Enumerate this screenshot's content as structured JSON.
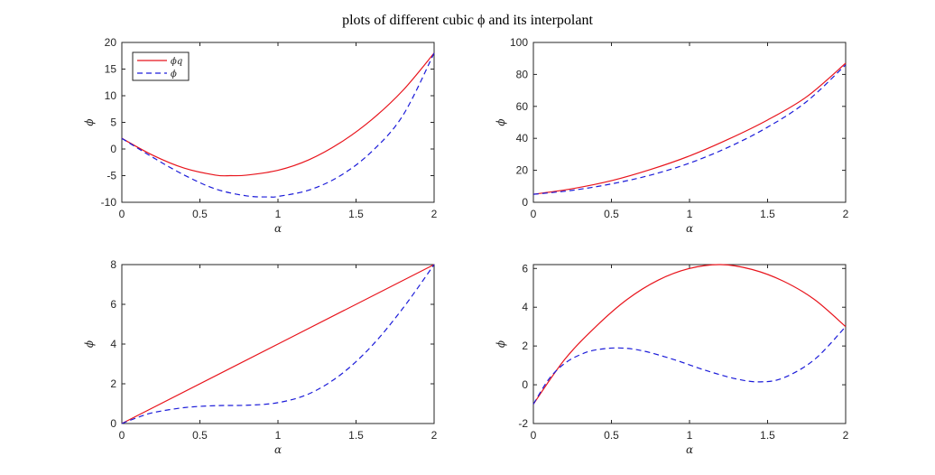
{
  "figure_title": "plots of different cubic ϕ and its interpolant",
  "colors": {
    "interpolant": "#e8141c",
    "phi": "#1c1cd9",
    "axes": "#262626"
  },
  "chart_data": [
    {
      "type": "line",
      "xlabel": "α",
      "ylabel": "ϕ",
      "xlim": [
        0,
        2
      ],
      "ylim": [
        -10,
        20
      ],
      "xticks": [
        0,
        0.5,
        1,
        1.5,
        2
      ],
      "xtick_labels": [
        "0",
        "0.5",
        "1",
        "1.5",
        "2"
      ],
      "yticks": [
        -10,
        -5,
        0,
        5,
        10,
        15,
        20
      ],
      "ytick_labels": [
        "-10",
        "-5",
        "0",
        "5",
        "10",
        "15",
        "20"
      ],
      "legend": {
        "placement": "top-left",
        "entries": [
          "ϕq",
          "ϕ"
        ]
      },
      "series": [
        {
          "name": "ϕq",
          "style": "solid",
          "color": "#e8141c",
          "x": [
            0,
            0.2,
            0.4,
            0.6,
            0.7,
            0.8,
            1.0,
            1.2,
            1.4,
            1.6,
            1.8,
            2.0
          ],
          "y": [
            2,
            -1.2,
            -3.6,
            -4.9,
            -5.0,
            -4.9,
            -4.0,
            -2.0,
            1.2,
            5.5,
            11.0,
            18.0
          ]
        },
        {
          "name": "ϕ",
          "style": "dashed",
          "color": "#1c1cd9",
          "x": [
            0,
            0.2,
            0.4,
            0.6,
            0.8,
            0.95,
            1.0,
            1.2,
            1.4,
            1.6,
            1.8,
            2.0
          ],
          "y": [
            2,
            -1.6,
            -4.9,
            -7.5,
            -8.8,
            -9.0,
            -8.9,
            -7.7,
            -5.0,
            -0.5,
            6.3,
            18.0
          ]
        }
      ]
    },
    {
      "type": "line",
      "xlabel": "α",
      "ylabel": "ϕ",
      "xlim": [
        0,
        2
      ],
      "ylim": [
        0,
        100
      ],
      "xticks": [
        0,
        0.5,
        1,
        1.5,
        2
      ],
      "xtick_labels": [
        "0",
        "0.5",
        "1",
        "1.5",
        "2"
      ],
      "yticks": [
        0,
        20,
        40,
        60,
        80,
        100
      ],
      "ytick_labels": [
        "0",
        "20",
        "40",
        "60",
        "80",
        "100"
      ],
      "series": [
        {
          "name": "ϕq",
          "style": "solid",
          "color": "#e8141c",
          "x": [
            0,
            0.25,
            0.5,
            0.75,
            1.0,
            1.25,
            1.5,
            1.75,
            2.0
          ],
          "y": [
            5,
            8.5,
            13.5,
            20.5,
            29,
            39.5,
            51.5,
            66,
            87
          ]
        },
        {
          "name": "ϕ",
          "style": "dashed",
          "color": "#1c1cd9",
          "x": [
            0,
            0.25,
            0.5,
            0.75,
            1.0,
            1.25,
            1.5,
            1.75,
            2.0
          ],
          "y": [
            5,
            7.5,
            11.5,
            17,
            24.5,
            34.5,
            47,
            63,
            86
          ]
        }
      ]
    },
    {
      "type": "line",
      "xlabel": "α",
      "ylabel": "ϕ",
      "xlim": [
        0,
        2
      ],
      "ylim": [
        0,
        8
      ],
      "xticks": [
        0,
        0.5,
        1,
        1.5,
        2
      ],
      "xtick_labels": [
        "0",
        "0.5",
        "1",
        "1.5",
        "2"
      ],
      "yticks": [
        0,
        2,
        4,
        6,
        8
      ],
      "ytick_labels": [
        "0",
        "2",
        "4",
        "6",
        "8"
      ],
      "series": [
        {
          "name": "ϕq",
          "style": "solid",
          "color": "#e8141c",
          "x": [
            0,
            2
          ],
          "y": [
            0,
            8
          ]
        },
        {
          "name": "ϕ",
          "style": "dashed",
          "color": "#1c1cd9",
          "x": [
            0,
            0.1,
            0.2,
            0.4,
            0.6,
            0.8,
            1.0,
            1.2,
            1.4,
            1.6,
            1.8,
            2.0
          ],
          "y": [
            0,
            0.3,
            0.55,
            0.8,
            0.9,
            0.92,
            1.05,
            1.5,
            2.45,
            3.9,
            5.8,
            8.0
          ]
        }
      ]
    },
    {
      "type": "line",
      "xlabel": "α",
      "ylabel": "ϕ",
      "xlim": [
        0,
        2
      ],
      "ylim": [
        -2,
        6.2
      ],
      "xticks": [
        0,
        0.5,
        1,
        1.5,
        2
      ],
      "xtick_labels": [
        "0",
        "0.5",
        "1",
        "1.5",
        "2"
      ],
      "yticks": [
        -2,
        0,
        2,
        4,
        6
      ],
      "ytick_labels": [
        "-2",
        "0",
        "2",
        "4",
        "6"
      ],
      "series": [
        {
          "name": "ϕq",
          "style": "solid",
          "color": "#e8141c",
          "x": [
            0,
            0.2,
            0.4,
            0.6,
            0.8,
            1.0,
            1.2,
            1.4,
            1.6,
            1.8,
            2.0
          ],
          "y": [
            -1,
            1.3,
            3.0,
            4.4,
            5.4,
            6.0,
            6.2,
            5.95,
            5.35,
            4.4,
            3.0
          ]
        },
        {
          "name": "ϕ",
          "style": "dashed",
          "color": "#1c1cd9",
          "x": [
            0,
            0.1,
            0.2,
            0.3,
            0.4,
            0.55,
            0.7,
            0.9,
            1.1,
            1.3,
            1.45,
            1.6,
            1.8,
            2.0
          ],
          "y": [
            -1,
            0.3,
            1.1,
            1.55,
            1.8,
            1.9,
            1.75,
            1.3,
            0.75,
            0.3,
            0.15,
            0.35,
            1.3,
            3.0
          ]
        }
      ]
    }
  ]
}
